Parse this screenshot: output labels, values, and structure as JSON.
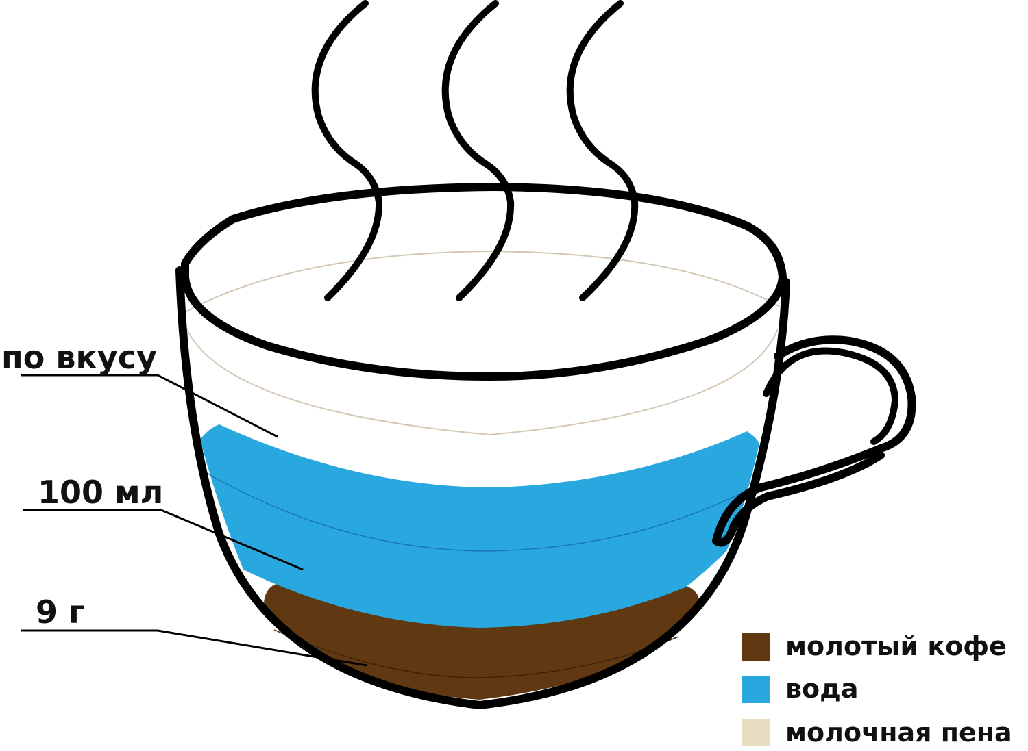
{
  "labels": {
    "foam": "по вкусу",
    "water": "100 мл",
    "coffee": "9 г"
  },
  "legend": [
    {
      "label": "молотый кофе",
      "color": "#603913"
    },
    {
      "label": "вода",
      "color": "#29a8e0"
    },
    {
      "label": "молочная пена",
      "color": "#e8dcc0"
    }
  ],
  "colors": {
    "outline": "#000000",
    "coffee": "#603913",
    "water": "#29a8e0",
    "foam_line": "#d3c7b4",
    "water_line": "#1b75bb"
  }
}
